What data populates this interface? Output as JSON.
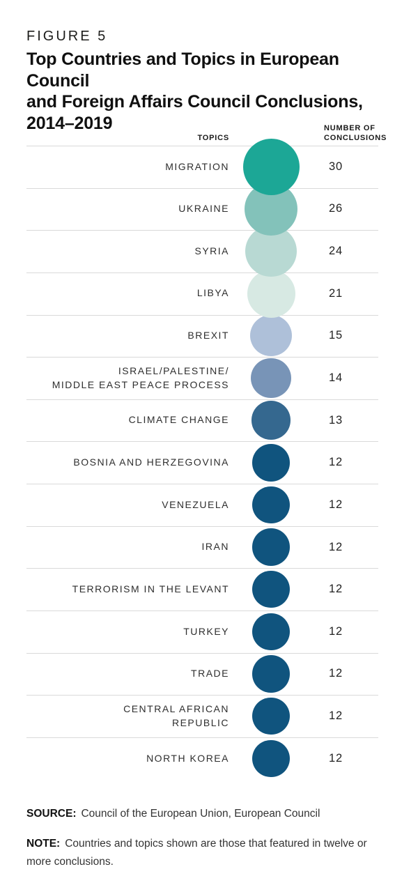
{
  "figure": {
    "label": "FIGURE 5",
    "title": "Top Countries and Topics in European Council\nand Foreign Affairs Council Conclusions,\n2014–2019"
  },
  "columns": {
    "topics_header": "TOPICS",
    "number_header": "NUMBER OF\nCONCLUSIONS"
  },
  "chart_data": {
    "type": "table",
    "variant": "proportional-bubble-list",
    "title": "Top Countries and Topics in European Council and Foreign Affairs Council Conclusions, 2014–2019",
    "figure_label": "FIGURE 5",
    "column_headers": [
      "TOPICS",
      "NUMBER OF CONCLUSIONS"
    ],
    "value_range": [
      12,
      30
    ],
    "legend_position": "none",
    "grid": "horizontal-row-dividers",
    "categories": [
      "MIGRATION",
      "UKRAINE",
      "SYRIA",
      "LIBYA",
      "BREXIT",
      "ISRAEL/PALESTINE/\nMIDDLE EAST PEACE PROCESS",
      "CLIMATE CHANGE",
      "BOSNIA AND HERZEGOVINA",
      "VENEZUELA",
      "IRAN",
      "TERRORISM IN THE LEVANT",
      "TURKEY",
      "TRADE",
      "CENTRAL AFRICAN\nREPUBLIC",
      "NORTH KOREA"
    ],
    "values": [
      30,
      26,
      24,
      21,
      15,
      14,
      13,
      12,
      12,
      12,
      12,
      12,
      12,
      12,
      12
    ],
    "bubble_colors": [
      "#1CA796",
      "#83C2BA",
      "#B8D9D3",
      "#D7E9E3",
      "#AEC0D9",
      "#7894B7",
      "#35688F",
      "#10547E",
      "#10547E",
      "#10547E",
      "#10547E",
      "#10547E",
      "#10547E",
      "#10547E",
      "#10547E"
    ]
  },
  "footer": {
    "source_label": "SOURCE:",
    "source_text": "Council of the European Union, European Council",
    "note_label": "NOTE:",
    "note_text": "Countries and topics shown are those that featured in twelve or more conclusions."
  },
  "colors": {
    "divider": "#d9d9d9",
    "title_text": "#101010",
    "label_text": "#2e2e2e",
    "teal_max": "#1CA796",
    "navy_min": "#10547E"
  }
}
